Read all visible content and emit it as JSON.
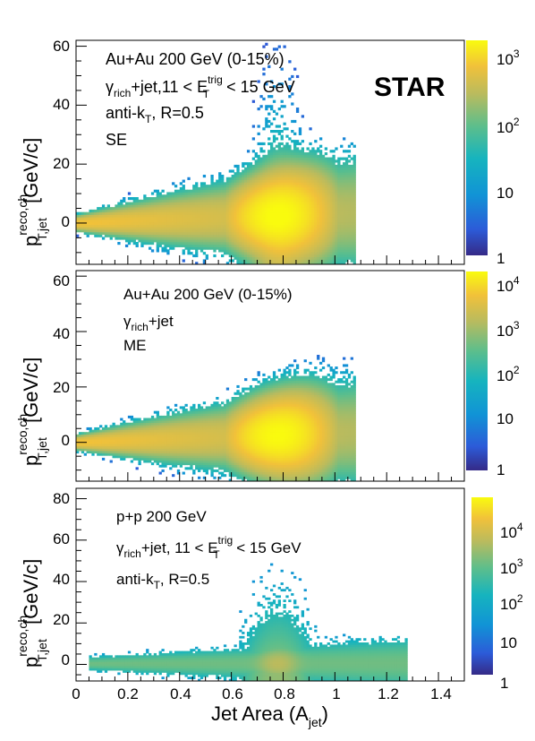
{
  "figure": {
    "logo": "STAR",
    "xlabel": "Jet Area (A",
    "xlabel_sub": "jet",
    "xlabel_close": ")",
    "x_ticks": [
      "0",
      "0.2",
      "0.4",
      "0.6",
      "0.8",
      "1",
      "1.2",
      "1.4"
    ]
  },
  "chart_data": [
    {
      "type": "heatmap",
      "panel": "top",
      "annotations": [
        "Au+Au 200 GeV (0-15%)",
        "γrich+jet, 11 < ETtrig < 15 GeV",
        "anti-kT, R=0.5",
        "SE"
      ],
      "line1": "Au+Au 200 GeV (0-15%)",
      "line2_a": "γ",
      "line2_b": "rich",
      "line2_c": "+jet,11 < E",
      "line2_sup": "trig",
      "line2_sub": "T",
      "line2_d": " < 15 GeV",
      "line3_a": "anti-k",
      "line3_sub": "T",
      "line3_b": ", R=0.5",
      "line4": "SE",
      "ylabel_p": "p",
      "ylabel_sup": "reco,ch",
      "ylabel_sub": "T,jet",
      "ylabel_unit": " [GeV/c]",
      "xlim": [
        0,
        1.5
      ],
      "ylim": [
        -14,
        62
      ],
      "y_ticks": [
        "0",
        "20",
        "40",
        "60"
      ],
      "z_ticks": [
        "1",
        "10",
        "10",
        "10",
        "10"
      ],
      "z_tick_exp": [
        "",
        "",
        "2",
        "3",
        ""
      ],
      "z_scale": "log",
      "z_range": [
        1,
        2000
      ]
    },
    {
      "type": "heatmap",
      "panel": "middle",
      "annotations": [
        "Au+Au 200 GeV (0-15%)",
        "γrich+jet",
        "ME"
      ],
      "line1": "Au+Au 200 GeV (0-15%)",
      "line2_a": "γ",
      "line2_b": "rich",
      "line2_c": "+jet",
      "line3": "ME",
      "ylabel_p": "p",
      "ylabel_sup": "reco,ch",
      "ylabel_sub": "T,jet",
      "ylabel_unit": " [GeV/c]",
      "xlim": [
        0,
        1.5
      ],
      "ylim": [
        -14,
        62
      ],
      "y_ticks": [
        "0",
        "20",
        "40",
        "60"
      ],
      "z_ticks": [
        "1",
        "10",
        "10",
        "10",
        "10"
      ],
      "z_tick_exp": [
        "",
        "",
        "2",
        "3",
        "4"
      ],
      "z_scale": "log",
      "z_range": [
        1,
        15000
      ]
    },
    {
      "type": "heatmap",
      "panel": "bottom",
      "annotations": [
        "p+p 200 GeV",
        "γrich+jet, 11 < ETtrig < 15 GeV",
        "anti-kT, R=0.5"
      ],
      "line1": "p+p 200 GeV",
      "line2_a": "γ",
      "line2_b": "rich",
      "line2_c": "+jet, 11 < E",
      "line2_sup": "trig",
      "line2_sub": "T",
      "line2_d": " < 15 GeV",
      "line3_a": "anti-k",
      "line3_sub": "T",
      "line3_b": ", R=0.5",
      "ylabel_p": "p",
      "ylabel_sup": "reco,ch",
      "ylabel_sub": "T,jet",
      "ylabel_unit": " [GeV/c]",
      "xlim": [
        0,
        1.5
      ],
      "ylim": [
        -8,
        85
      ],
      "y_ticks": [
        "0",
        "20",
        "40",
        "60",
        "80"
      ],
      "z_ticks": [
        "1",
        "10",
        "10",
        "10",
        "10"
      ],
      "z_tick_exp": [
        "",
        "",
        "2",
        "3",
        "4"
      ],
      "z_scale": "log",
      "z_range": [
        1,
        80000
      ]
    }
  ]
}
